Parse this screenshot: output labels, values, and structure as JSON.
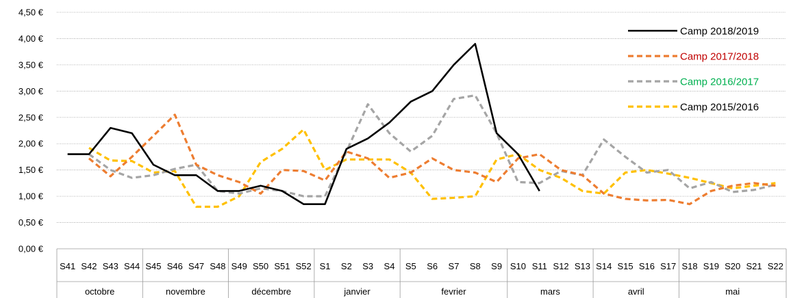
{
  "chart_data": {
    "type": "line",
    "title": "",
    "xlabel": "",
    "ylabel": "",
    "ylim": [
      0,
      4.5
    ],
    "y_ticks": [
      "0,00 €",
      "0,50 €",
      "1,00 €",
      "1,50 €",
      "2,00 €",
      "2,50 €",
      "3,00 €",
      "3,50 €",
      "4,00 €",
      "4,50 €"
    ],
    "grid": "horizontal",
    "legend_position": "top-right",
    "categories": [
      "S41",
      "S42",
      "S43",
      "S44",
      "S45",
      "S46",
      "S47",
      "S48",
      "S49",
      "S50",
      "S51",
      "S52",
      "S1",
      "S2",
      "S3",
      "S4",
      "S5",
      "S6",
      "S7",
      "S8",
      "S9",
      "S10",
      "S11",
      "S12",
      "S13",
      "S14",
      "S15",
      "S16",
      "S17",
      "S18",
      "S19",
      "S20",
      "S21",
      "S22"
    ],
    "months": [
      {
        "label": "octobre",
        "span": 4
      },
      {
        "label": "novembre",
        "span": 4
      },
      {
        "label": "décembre",
        "span": 4
      },
      {
        "label": "janvier",
        "span": 4
      },
      {
        "label": "fevrier",
        "span": 5
      },
      {
        "label": "mars",
        "span": 4
      },
      {
        "label": "avril",
        "span": 4
      },
      {
        "label": "mai",
        "span": 5
      }
    ],
    "series": [
      {
        "name": "Camp 2018/2019",
        "color": "#000000",
        "label_color": "#000000",
        "dash": "solid",
        "values": [
          1.8,
          1.8,
          2.3,
          2.2,
          1.6,
          1.4,
          1.4,
          1.1,
          1.1,
          1.2,
          1.1,
          0.85,
          0.85,
          1.9,
          2.1,
          2.4,
          2.8,
          3.0,
          3.5,
          3.9,
          2.2,
          1.8,
          1.1,
          null,
          null,
          null,
          null,
          null,
          null,
          null,
          null,
          null,
          null,
          null
        ]
      },
      {
        "name": "Camp 2017/2018",
        "color": "#ED7D31",
        "label_color": "#C00000",
        "dash": "dashed",
        "values": [
          null,
          1.72,
          1.38,
          1.75,
          2.15,
          2.55,
          1.6,
          1.4,
          1.27,
          1.05,
          1.5,
          1.48,
          1.3,
          1.85,
          1.72,
          1.35,
          1.45,
          1.72,
          1.5,
          1.45,
          1.27,
          1.72,
          1.8,
          1.5,
          1.4,
          1.05,
          0.95,
          0.92,
          0.93,
          0.85,
          1.1,
          1.2,
          1.25,
          1.2
        ]
      },
      {
        "name": "Camp 2016/2017",
        "color": "#A5A5A5",
        "label_color": "#00B050",
        "dash": "dashed",
        "values": [
          null,
          1.8,
          1.5,
          1.35,
          1.4,
          1.52,
          1.6,
          1.1,
          1.05,
          1.15,
          1.1,
          1.0,
          1.0,
          1.85,
          2.75,
          2.2,
          1.85,
          2.15,
          2.85,
          2.92,
          2.2,
          1.27,
          1.25,
          1.48,
          1.4,
          2.08,
          1.75,
          1.45,
          1.5,
          1.15,
          1.27,
          1.08,
          1.12,
          1.22
        ]
      },
      {
        "name": "Camp 2015/2016",
        "color": "#FFC000",
        "label_color": "#000000",
        "dash": "dashed",
        "values": [
          null,
          1.92,
          1.68,
          1.67,
          1.45,
          1.48,
          0.8,
          0.8,
          1.0,
          1.65,
          1.9,
          2.27,
          1.5,
          1.7,
          1.7,
          1.7,
          1.45,
          0.95,
          0.97,
          1.0,
          1.7,
          1.8,
          1.5,
          1.35,
          1.1,
          1.05,
          1.45,
          1.5,
          1.43,
          1.35,
          1.25,
          1.15,
          1.2,
          1.25
        ]
      }
    ]
  }
}
